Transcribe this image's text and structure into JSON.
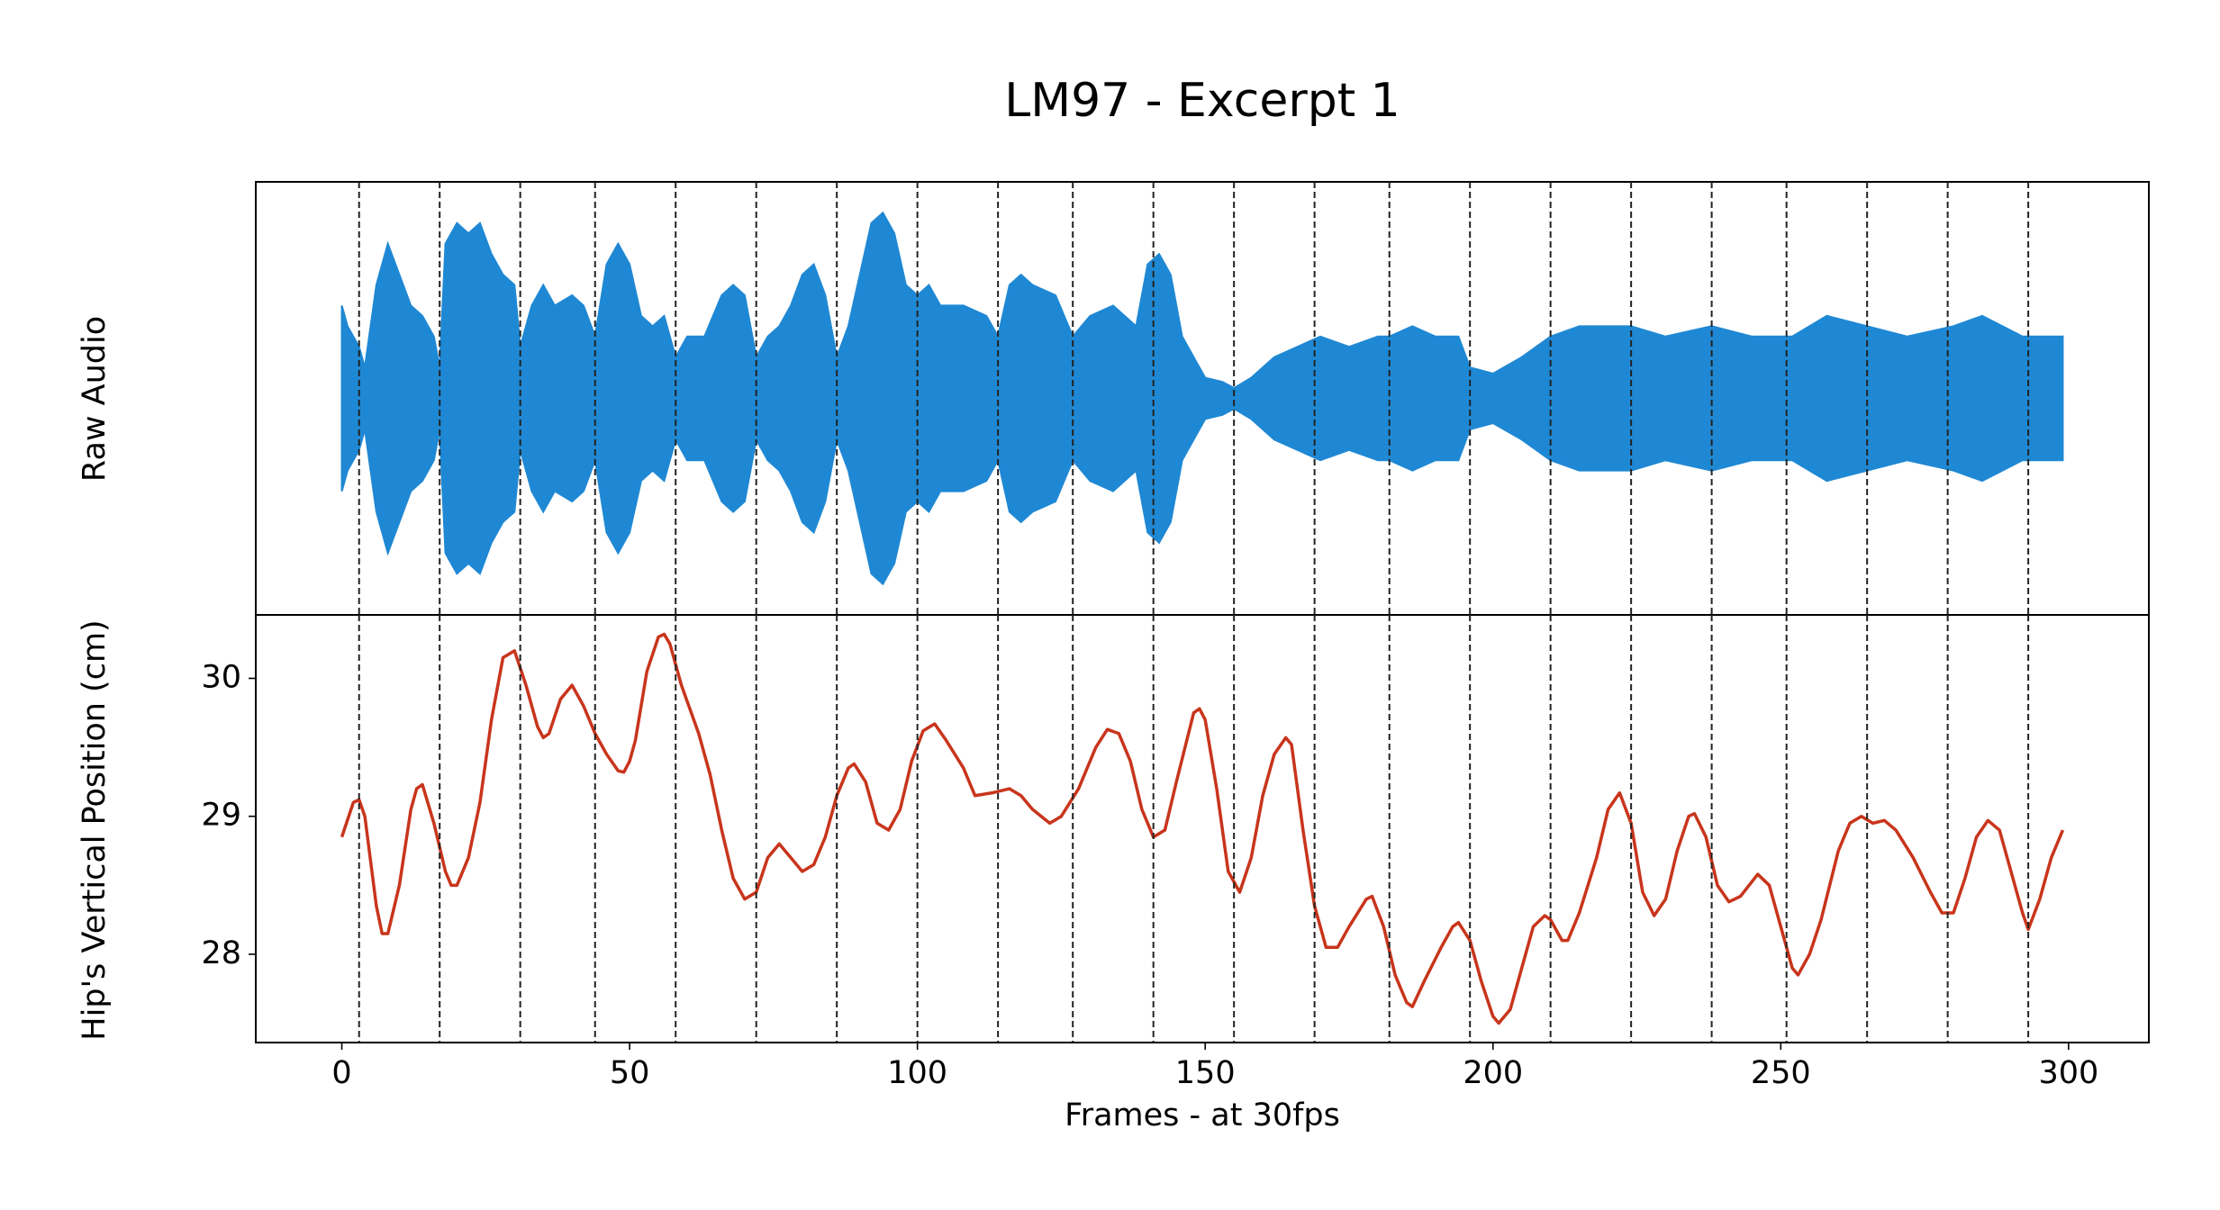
{
  "chart_data": [
    {
      "type": "area",
      "title": "LM97 - Excerpt 1",
      "ylabel": "Raw Audio",
      "color": "#1f88d4",
      "xlim": [
        -14.95,
        313.95
      ],
      "ylim": [
        -1.05,
        1.05
      ],
      "beats": [
        3,
        17,
        31,
        44,
        58,
        72,
        86,
        100,
        114,
        127,
        141,
        155,
        169,
        182,
        196,
        210,
        224,
        238,
        251,
        265,
        279,
        293
      ],
      "x": [
        0,
        1,
        3,
        4,
        6,
        8,
        10,
        12,
        14,
        16,
        17,
        18,
        20,
        22,
        24,
        26,
        28,
        30,
        31,
        33,
        35,
        37,
        40,
        42,
        44,
        46,
        48,
        50,
        52,
        54,
        56,
        58,
        60,
        63,
        66,
        68,
        70,
        72,
        74,
        76,
        78,
        80,
        82,
        84,
        86,
        88,
        90,
        92,
        94,
        96,
        98,
        100,
        102,
        104,
        108,
        112,
        114,
        116,
        118,
        120,
        124,
        127,
        130,
        134,
        138,
        140,
        142,
        144,
        146,
        148,
        150,
        153,
        155,
        158,
        162,
        166,
        170,
        175,
        180,
        182,
        186,
        190,
        194,
        196,
        200,
        205,
        210,
        215,
        220,
        224,
        230,
        238,
        245,
        252,
        258,
        265,
        272,
        280,
        285,
        292,
        299
      ],
      "values": [
        0.45,
        0.35,
        0.25,
        0.15,
        0.55,
        0.75,
        0.6,
        0.45,
        0.4,
        0.3,
        0.15,
        0.75,
        0.85,
        0.8,
        0.85,
        0.7,
        0.6,
        0.55,
        0.25,
        0.45,
        0.55,
        0.45,
        0.5,
        0.45,
        0.3,
        0.65,
        0.75,
        0.65,
        0.4,
        0.35,
        0.4,
        0.2,
        0.3,
        0.3,
        0.5,
        0.55,
        0.5,
        0.2,
        0.3,
        0.35,
        0.45,
        0.6,
        0.65,
        0.5,
        0.2,
        0.35,
        0.6,
        0.85,
        0.9,
        0.8,
        0.55,
        0.5,
        0.55,
        0.45,
        0.45,
        0.4,
        0.3,
        0.55,
        0.6,
        0.55,
        0.5,
        0.3,
        0.4,
        0.45,
        0.35,
        0.65,
        0.7,
        0.6,
        0.3,
        0.2,
        0.1,
        0.08,
        0.05,
        0.1,
        0.2,
        0.25,
        0.3,
        0.25,
        0.3,
        0.3,
        0.35,
        0.3,
        0.3,
        0.15,
        0.12,
        0.2,
        0.3,
        0.35,
        0.35,
        0.35,
        0.3,
        0.35,
        0.3,
        0.3,
        0.4,
        0.35,
        0.3,
        0.35,
        0.4,
        0.3,
        0.3
      ]
    },
    {
      "type": "line",
      "ylabel": "Hip's Vertical Position (cm)",
      "xlabel": "Frames - at 30fps",
      "color": "#c8351c",
      "xlim": [
        -14.95,
        313.95
      ],
      "ylim": [
        27.36,
        30.46
      ],
      "xticks": [
        0,
        50,
        100,
        150,
        200,
        250,
        300
      ],
      "yticks": [
        28,
        29,
        30
      ],
      "x": [
        0,
        2,
        3,
        4,
        6,
        7,
        8,
        10,
        12,
        13,
        14,
        16,
        18,
        19,
        20,
        22,
        24,
        26,
        28,
        30,
        32,
        34,
        35,
        36,
        38,
        40,
        42,
        44,
        46,
        48,
        49,
        50,
        51,
        53,
        55,
        56,
        57,
        59,
        62,
        64,
        66,
        68,
        70,
        72,
        74,
        76,
        78,
        80,
        82,
        84,
        86,
        88,
        89,
        91,
        93,
        95,
        97,
        99,
        101,
        103,
        105,
        108,
        110,
        113,
        116,
        118,
        120,
        123,
        125,
        128,
        131,
        133,
        135,
        137,
        139,
        141,
        143,
        145,
        148,
        149,
        150,
        152,
        154,
        156,
        158,
        160,
        162,
        164,
        165,
        167,
        169,
        171,
        173,
        175,
        178,
        179,
        181,
        183,
        185,
        186,
        188,
        191,
        193,
        194,
        196,
        198,
        200,
        201,
        203,
        205,
        207,
        209,
        210,
        212,
        213,
        215,
        218,
        220,
        222,
        224,
        226,
        228,
        230,
        232,
        234,
        235,
        237,
        239,
        241,
        243,
        246,
        248,
        250,
        252,
        253,
        255,
        257,
        260,
        262,
        264,
        266,
        268,
        270,
        273,
        276,
        278,
        280,
        282,
        284,
        286,
        288,
        290,
        292,
        293,
        295,
        297,
        299
      ],
      "values": [
        28.85,
        29.1,
        29.12,
        29.0,
        28.35,
        28.15,
        28.15,
        28.5,
        29.05,
        29.2,
        29.23,
        28.95,
        28.6,
        28.5,
        28.5,
        28.7,
        29.1,
        29.7,
        30.15,
        30.2,
        29.95,
        29.65,
        29.57,
        29.6,
        29.85,
        29.95,
        29.8,
        29.6,
        29.45,
        29.33,
        29.32,
        29.4,
        29.55,
        30.05,
        30.3,
        30.32,
        30.25,
        29.95,
        29.6,
        29.3,
        28.9,
        28.55,
        28.4,
        28.45,
        28.7,
        28.8,
        28.7,
        28.6,
        28.65,
        28.85,
        29.15,
        29.35,
        29.38,
        29.25,
        28.95,
        28.9,
        29.05,
        29.4,
        29.62,
        29.67,
        29.55,
        29.35,
        29.15,
        29.17,
        29.2,
        29.15,
        29.05,
        28.95,
        29.0,
        29.2,
        29.5,
        29.63,
        29.6,
        29.4,
        29.05,
        28.85,
        28.9,
        29.25,
        29.75,
        29.78,
        29.7,
        29.2,
        28.6,
        28.45,
        28.7,
        29.15,
        29.45,
        29.57,
        29.52,
        28.9,
        28.35,
        28.05,
        28.05,
        28.2,
        28.4,
        28.42,
        28.2,
        27.85,
        27.65,
        27.62,
        27.8,
        28.05,
        28.2,
        28.23,
        28.1,
        27.8,
        27.55,
        27.5,
        27.6,
        27.9,
        28.2,
        28.28,
        28.25,
        28.1,
        28.1,
        28.3,
        28.7,
        29.05,
        29.17,
        28.95,
        28.45,
        28.28,
        28.4,
        28.75,
        29.0,
        29.02,
        28.85,
        28.5,
        28.38,
        28.42,
        28.58,
        28.5,
        28.2,
        27.9,
        27.85,
        28.0,
        28.25,
        28.75,
        28.95,
        29.0,
        28.95,
        28.97,
        28.9,
        28.7,
        28.45,
        28.3,
        28.3,
        28.55,
        28.85,
        28.97,
        28.9,
        28.6,
        28.3,
        28.18,
        28.4,
        28.7,
        28.9
      ]
    }
  ]
}
